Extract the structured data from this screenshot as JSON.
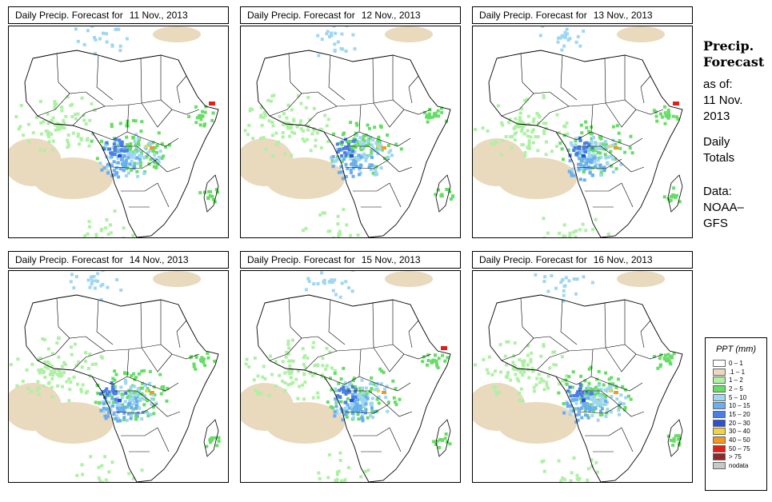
{
  "title_prefix": "Daily Precip. Forecast for",
  "panels": [
    {
      "date": "11 Nov., 2013"
    },
    {
      "date": "12 Nov., 2013"
    },
    {
      "date": "13 Nov., 2013"
    },
    {
      "date": "14 Nov., 2013"
    },
    {
      "date": "15 Nov., 2013"
    },
    {
      "date": "16 Nov., 2013"
    }
  ],
  "side": {
    "title_line1": "Precip.",
    "title_line2": "Forecast",
    "asof_label": "as of:",
    "asof_line1": "11 Nov.",
    "asof_line2": "2013",
    "totals_line1": "Daily",
    "totals_line2": "Totals",
    "data_line1": "Data:",
    "data_line2": "NOAA–",
    "data_line3": "GFS"
  },
  "legend": {
    "title": "PPT (mm)",
    "items": [
      {
        "label": "0 – 1",
        "color": "#ffffff"
      },
      {
        "label": ".1 – 1",
        "color": "#e9d9bd"
      },
      {
        "label": "1 – 2",
        "color": "#aef0a4"
      },
      {
        "label": "2 – 5",
        "color": "#66dd66"
      },
      {
        "label": "5 – 10",
        "color": "#9fd6f2"
      },
      {
        "label": "10 – 15",
        "color": "#6aaef0"
      },
      {
        "label": "15 – 20",
        "color": "#4a7ee6"
      },
      {
        "label": "20 – 30",
        "color": "#2c4fd4"
      },
      {
        "label": "30 – 40",
        "color": "#f2d440"
      },
      {
        "label": "40 – 50",
        "color": "#f29a20"
      },
      {
        "label": "50 – 75",
        "color": "#e0201a"
      },
      {
        "label": "> 75",
        "color": "#8b2a2a"
      },
      {
        "label": "nodata",
        "color": "#c8c8c8"
      }
    ]
  }
}
